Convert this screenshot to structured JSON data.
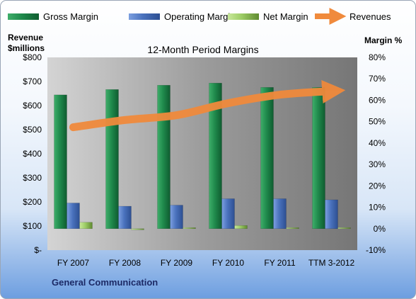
{
  "chart_data": {
    "type": "bar",
    "title": "12-Month Period Margins",
    "categories": [
      "FY 2007",
      "FY 2008",
      "FY 2009",
      "FY 2010",
      "FY 2011",
      "TTM 3-2012"
    ],
    "series": [
      {
        "name": "Gross Margin",
        "axis": "right",
        "kind": "bar",
        "color": "#1f8a4c",
        "values": [
          62.5,
          65,
          67,
          68,
          66,
          66
        ]
      },
      {
        "name": "Operating Margin",
        "axis": "right",
        "kind": "bar",
        "color": "#4a72bd",
        "values": [
          12,
          10.5,
          11,
          14,
          14,
          13.5
        ]
      },
      {
        "name": "Net Margin",
        "axis": "right",
        "kind": "bar",
        "color": "#9ccc65",
        "values": [
          3,
          -0.5,
          0.5,
          1.5,
          0.5,
          0.5
        ]
      },
      {
        "name": "Revenues",
        "axis": "left",
        "kind": "line",
        "color": "#f08a3c",
        "values": [
          510,
          540,
          560,
          610,
          645,
          660
        ]
      }
    ],
    "left_axis": {
      "label_line1": "Revenue",
      "label_line2": "$millions",
      "ylim": [
        0,
        800
      ],
      "ticks": [
        0,
        100,
        200,
        300,
        400,
        500,
        600,
        700,
        800
      ],
      "tick_labels": [
        "$-",
        "$100",
        "$200",
        "$300",
        "$400",
        "$500",
        "$600",
        "$700",
        "$800"
      ]
    },
    "right_axis": {
      "label": "Margin %",
      "ylim": [
        -10,
        80
      ],
      "ticks": [
        -10,
        0,
        10,
        20,
        30,
        40,
        50,
        60,
        70,
        80
      ],
      "tick_labels": [
        "-10%",
        "0%",
        "10%",
        "20%",
        "30%",
        "40%",
        "50%",
        "60%",
        "70%",
        "80%"
      ]
    },
    "legend_position": "top",
    "grid": false
  },
  "company": "General Communication"
}
